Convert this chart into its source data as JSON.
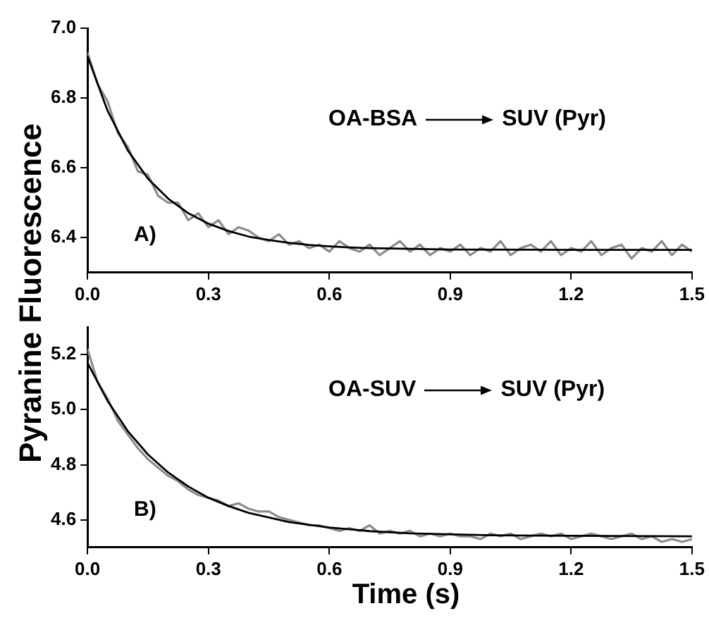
{
  "chart_data": [
    {
      "type": "line",
      "ylabel": "Pyranine Fluorescence",
      "annotations": [
        "A)",
        "OA-BSA",
        "SUV (Pyr)"
      ],
      "xlim": [
        0,
        1.5
      ],
      "xticks": [
        {
          "value": 0,
          "label": "0.0"
        },
        0.3,
        0.6,
        0.9,
        1.2,
        1.5
      ],
      "ylim": [
        6.3,
        7.0
      ],
      "yticks": [
        6.4,
        6.6,
        6.8,
        {
          "value": 7,
          "label": "7.0"
        }
      ],
      "series": [
        {
          "color": "#8c8c8c",
          "x": [
            0,
            0.025,
            0.05,
            0.075,
            0.1,
            0.125,
            0.15,
            0.175,
            0.2,
            0.225,
            0.25,
            0.275,
            0.3,
            0.325,
            0.35,
            0.375,
            0.4,
            0.425,
            0.45,
            0.475,
            0.5,
            0.525,
            0.55,
            0.575,
            0.6,
            0.625,
            0.65,
            0.675,
            0.7,
            0.725,
            0.75,
            0.775,
            0.8,
            0.825,
            0.85,
            0.875,
            0.9,
            0.925,
            0.95,
            0.975,
            1.0,
            1.025,
            1.05,
            1.075,
            1.1,
            1.125,
            1.15,
            1.175,
            1.2,
            1.225,
            1.25,
            1.275,
            1.3,
            1.325,
            1.35,
            1.375,
            1.4,
            1.425,
            1.45,
            1.475,
            1.5
          ],
          "values": [
            6.93,
            6.84,
            6.79,
            6.7,
            6.66,
            6.59,
            6.58,
            6.52,
            6.5,
            6.5,
            6.45,
            6.47,
            6.43,
            6.45,
            6.41,
            6.43,
            6.42,
            6.4,
            6.39,
            6.41,
            6.38,
            6.39,
            6.37,
            6.38,
            6.36,
            6.39,
            6.37,
            6.36,
            6.38,
            6.35,
            6.37,
            6.39,
            6.36,
            6.38,
            6.35,
            6.37,
            6.36,
            6.38,
            6.35,
            6.37,
            6.36,
            6.39,
            6.35,
            6.37,
            6.38,
            6.36,
            6.39,
            6.35,
            6.37,
            6.36,
            6.39,
            6.35,
            6.37,
            6.38,
            6.34,
            6.37,
            6.36,
            6.39,
            6.35,
            6.38,
            6.36
          ]
        },
        {
          "color": "#000000",
          "x": [
            0,
            0.05,
            0.1,
            0.15,
            0.2,
            0.25,
            0.3,
            0.35,
            0.4,
            0.45,
            0.5,
            0.55,
            0.6,
            0.65,
            0.7,
            0.75,
            0.9,
            1.2,
            1.5
          ],
          "values": [
            6.92,
            6.763,
            6.65,
            6.569,
            6.512,
            6.47,
            6.44,
            6.419,
            6.403,
            6.393,
            6.385,
            6.379,
            6.375,
            6.372,
            6.37,
            6.369,
            6.366,
            6.365,
            6.365
          ]
        }
      ]
    },
    {
      "type": "line",
      "xlabel": "Time (s)",
      "annotations": [
        "B)",
        "OA-SUV",
        "SUV (Pyr)"
      ],
      "xlim": [
        0,
        1.5
      ],
      "xticks": [
        {
          "value": 0,
          "label": "0.0"
        },
        0.3,
        0.6,
        0.9,
        1.2,
        1.5
      ],
      "ylim": [
        4.5,
        5.3
      ],
      "yticks": [
        4.6,
        4.8,
        {
          "value": 5,
          "label": "5.0"
        },
        5.2
      ],
      "series": [
        {
          "color": "#8c8c8c",
          "x": [
            0,
            0.025,
            0.05,
            0.075,
            0.1,
            0.125,
            0.15,
            0.175,
            0.2,
            0.225,
            0.25,
            0.275,
            0.3,
            0.325,
            0.35,
            0.375,
            0.4,
            0.425,
            0.45,
            0.475,
            0.5,
            0.525,
            0.55,
            0.575,
            0.6,
            0.625,
            0.65,
            0.675,
            0.7,
            0.725,
            0.75,
            0.775,
            0.8,
            0.825,
            0.85,
            0.875,
            0.9,
            0.925,
            0.95,
            0.975,
            1.0,
            1.025,
            1.05,
            1.075,
            1.1,
            1.125,
            1.15,
            1.175,
            1.2,
            1.225,
            1.25,
            1.275,
            1.3,
            1.325,
            1.35,
            1.375,
            1.4,
            1.425,
            1.45,
            1.475,
            1.5
          ],
          "values": [
            5.22,
            5.1,
            5.04,
            4.96,
            4.91,
            4.86,
            4.82,
            4.79,
            4.76,
            4.74,
            4.71,
            4.69,
            4.68,
            4.67,
            4.65,
            4.66,
            4.64,
            4.63,
            4.63,
            4.61,
            4.6,
            4.59,
            4.58,
            4.58,
            4.57,
            4.56,
            4.57,
            4.56,
            4.58,
            4.55,
            4.56,
            4.55,
            4.56,
            4.54,
            4.55,
            4.54,
            4.55,
            4.54,
            4.54,
            4.53,
            4.55,
            4.54,
            4.55,
            4.53,
            4.54,
            4.55,
            4.54,
            4.55,
            4.53,
            4.54,
            4.55,
            4.54,
            4.53,
            4.54,
            4.55,
            4.53,
            4.54,
            4.52,
            4.53,
            4.52,
            4.53
          ]
        },
        {
          "color": "#000000",
          "x": [
            0,
            0.05,
            0.1,
            0.15,
            0.2,
            0.25,
            0.3,
            0.35,
            0.4,
            0.5,
            0.6,
            0.7,
            0.8,
            1.0,
            1.2,
            1.5
          ],
          "values": [
            5.17,
            5.031,
            4.922,
            4.837,
            4.772,
            4.721,
            4.68,
            4.65,
            4.625,
            4.592,
            4.572,
            4.559,
            4.551,
            4.544,
            4.542,
            4.54
          ]
        }
      ]
    }
  ]
}
